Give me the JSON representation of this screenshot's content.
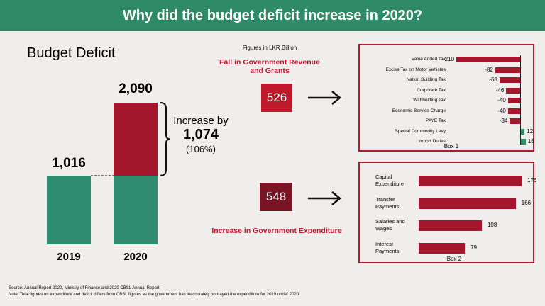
{
  "header": {
    "title": "Why did the budget deficit increase in 2020?"
  },
  "unit_note": "Figures in LKR Billion",
  "revenue": {
    "label": "Fall in Government Revenue and Grants",
    "value": 526
  },
  "expenditure": {
    "label": "Increase in Government Expenditure",
    "value": 548
  },
  "footer": {
    "source": "Source: Annual Report 2020, Ministry of Finance and 2020 CBSL Annual Report",
    "note": "Note: Total figures on expenditure and deficit differs from CBSL figures as the government has inaccurately portrayed the expenditure for 2019 under 2020"
  },
  "chart_data": [
    {
      "type": "stacked-bar",
      "title": "Budget Deficit",
      "categories": [
        "2019",
        "2020"
      ],
      "series": [
        {
          "color": "#2e8b6e",
          "values": [
            1016,
            1016
          ],
          "value_labels": [
            "1,016",
            null
          ]
        },
        {
          "color": "#a3162b",
          "values": [
            null,
            1074
          ],
          "value_labels": [
            null,
            "1,074"
          ]
        }
      ],
      "totals": [
        null,
        {
          "value": 2090,
          "label": "2,090"
        }
      ],
      "annotation": "Increase by",
      "increase_pct": {
        "value": 106,
        "label": "(106%)"
      }
    },
    {
      "type": "hbar",
      "caption": "Box 1",
      "categories": [
        "Value Added Tax",
        "Excise Tax on Motor Vehicles",
        "Nation Building Tax",
        "Corporate Tax",
        "Withholding Tax",
        "Economic Service Charge",
        "PAYE Tax",
        "Special Commodity Levy",
        "Import Duties"
      ],
      "values": [
        -210,
        -82,
        -68,
        -46,
        -40,
        -40,
        -34,
        12,
        16
      ],
      "color": "#a3162b",
      "positive_color": "#2e8b6e"
    },
    {
      "type": "hbar",
      "caption": "Box 2",
      "categories": [
        "Capital Expenditure",
        "Transfer Payments",
        "Salaries and Wages",
        "Interest Payments"
      ],
      "values": [
        176,
        166,
        108,
        79
      ],
      "color": "#a3162b"
    }
  ]
}
